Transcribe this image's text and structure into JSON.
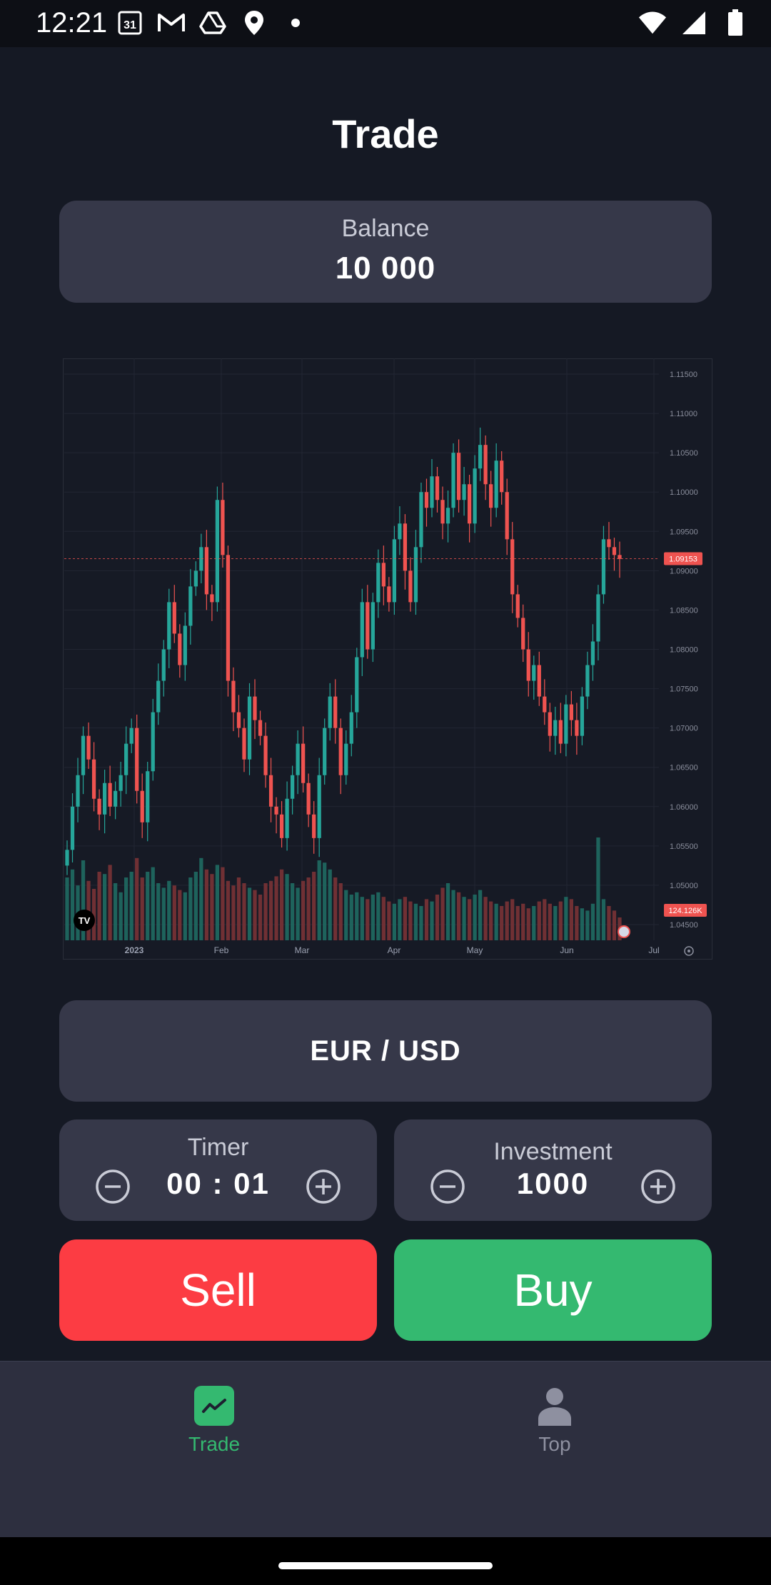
{
  "status_bar": {
    "time": "12:21",
    "calendar_day": "31",
    "left_icons": [
      "calendar-icon",
      "gmail-icon",
      "drive-icon",
      "location-icon",
      "dot-icon"
    ],
    "right_icons": [
      "wifi-icon",
      "signal-icon",
      "battery-icon"
    ]
  },
  "header": {
    "title": "Trade"
  },
  "balance": {
    "label": "Balance",
    "value": "10 000"
  },
  "chart_data": {
    "type": "candlestick",
    "x_tick_labels": [
      "2023",
      "Feb",
      "Mar",
      "Apr",
      "May",
      "Jun",
      "Jul"
    ],
    "y_tick_labels": [
      "1.11500",
      "1.11000",
      "1.10500",
      "1.10000",
      "1.09500",
      "1.09000",
      "1.08500",
      "1.08000",
      "1.07500",
      "1.07000",
      "1.06500",
      "1.06000",
      "1.05500",
      "1.05000",
      "1.04500"
    ],
    "ylim": [
      1.043,
      1.117
    ],
    "current_price": "1.09153",
    "volume_label": "124.126K",
    "close_series": [
      1.0545,
      1.06,
      1.064,
      1.069,
      1.066,
      1.061,
      1.059,
      1.063,
      1.06,
      1.062,
      1.064,
      1.068,
      1.07,
      1.062,
      1.058,
      1.0645,
      1.072,
      1.076,
      1.08,
      1.086,
      1.082,
      1.078,
      1.083,
      1.088,
      1.09,
      1.093,
      1.087,
      1.086,
      1.099,
      1.092,
      1.076,
      1.072,
      1.07,
      1.066,
      1.074,
      1.071,
      1.069,
      1.064,
      1.06,
      1.059,
      1.056,
      1.061,
      1.064,
      1.068,
      1.063,
      1.059,
      1.056,
      1.064,
      1.07,
      1.074,
      1.07,
      1.064,
      1.068,
      1.072,
      1.079,
      1.086,
      1.08,
      1.086,
      1.091,
      1.088,
      1.086,
      1.094,
      1.096,
      1.09,
      1.086,
      1.093,
      1.1,
      1.098,
      1.102,
      1.099,
      1.096,
      1.098,
      1.105,
      1.099,
      1.101,
      1.096,
      1.103,
      1.106,
      1.101,
      1.098,
      1.104,
      1.1,
      1.094,
      1.087,
      1.084,
      1.08,
      1.076,
      1.078,
      1.074,
      1.072,
      1.069,
      1.071,
      1.068,
      1.073,
      1.071,
      1.069,
      1.074,
      1.078,
      1.081,
      1.087,
      1.094,
      1.093,
      1.092,
      1.0915
    ],
    "volume_series": [
      0.55,
      0.62,
      0.48,
      0.7,
      0.52,
      0.45,
      0.6,
      0.58,
      0.66,
      0.5,
      0.42,
      0.55,
      0.6,
      0.72,
      0.55,
      0.6,
      0.64,
      0.5,
      0.46,
      0.52,
      0.48,
      0.44,
      0.42,
      0.55,
      0.6,
      0.72,
      0.62,
      0.58,
      0.66,
      0.64,
      0.52,
      0.48,
      0.55,
      0.5,
      0.46,
      0.44,
      0.4,
      0.5,
      0.52,
      0.56,
      0.62,
      0.58,
      0.5,
      0.46,
      0.52,
      0.55,
      0.6,
      0.7,
      0.68,
      0.62,
      0.55,
      0.5,
      0.44,
      0.4,
      0.42,
      0.38,
      0.36,
      0.4,
      0.42,
      0.38,
      0.34,
      0.32,
      0.36,
      0.38,
      0.34,
      0.32,
      0.3,
      0.36,
      0.34,
      0.4,
      0.46,
      0.5,
      0.44,
      0.42,
      0.38,
      0.36,
      0.4,
      0.44,
      0.38,
      0.34,
      0.32,
      0.3,
      0.34,
      0.36,
      0.3,
      0.32,
      0.28,
      0.3,
      0.34,
      0.36,
      0.32,
      0.3,
      0.34,
      0.38,
      0.36,
      0.3,
      0.28,
      0.26,
      0.32,
      0.9,
      0.36,
      0.3,
      0.26,
      0.2
    ],
    "grid": true,
    "up_color": "#26a69a",
    "down_color": "#ef5350"
  },
  "pair": {
    "label": "EUR / USD"
  },
  "timer": {
    "label": "Timer",
    "value": "00 : 01"
  },
  "investment": {
    "label": "Investment",
    "value": "1000"
  },
  "actions": {
    "sell_label": "Sell",
    "buy_label": "Buy",
    "sell_color": "#fc3c43",
    "buy_color": "#34b970"
  },
  "nav": {
    "items": [
      {
        "label": "Trade",
        "icon": "trend-chart-icon",
        "active": true
      },
      {
        "label": "Top",
        "icon": "person-icon",
        "active": false
      }
    ],
    "active_color": "#34b970",
    "inactive_color": "#8e90a0"
  }
}
